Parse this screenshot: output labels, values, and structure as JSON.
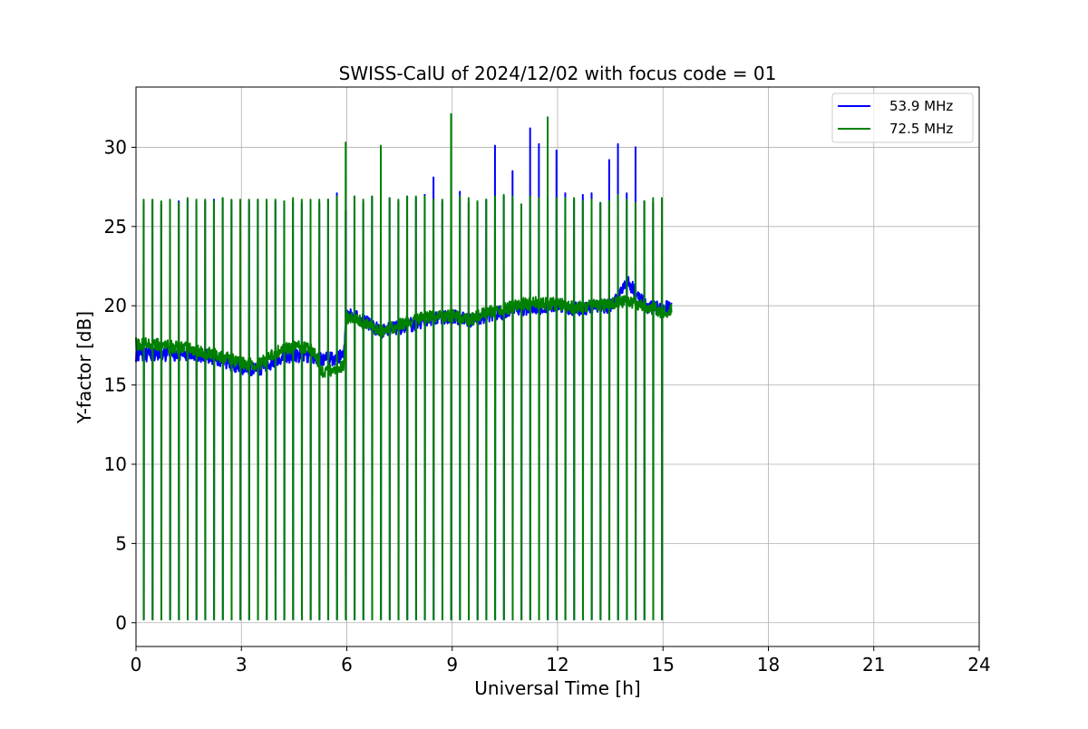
{
  "chart_data": {
    "type": "line",
    "title": "SWISS-CalU of 2024/12/02 with focus code = 01",
    "xlabel": "Universal Time [h]",
    "ylabel": "Y-factor [dB]",
    "xlim": [
      0,
      24
    ],
    "ylim": [
      -1.5,
      33.8
    ],
    "xticks": [
      0,
      3,
      6,
      9,
      12,
      15,
      18,
      21,
      24
    ],
    "xtick_labels": [
      "0",
      "3",
      "6",
      "9",
      "12",
      "15",
      "18",
      "21",
      "24"
    ],
    "yticks": [
      0,
      5,
      10,
      15,
      20,
      25,
      30
    ],
    "ytick_labels": [
      "0",
      "5",
      "10",
      "15",
      "20",
      "25",
      "30"
    ],
    "grid": true,
    "legend_position": "top-right",
    "calibration_pulses": {
      "description_period_h": 0.25,
      "low_value_db": 0.2,
      "pulse_times_h": [
        0.22,
        0.47,
        0.72,
        0.97,
        1.22,
        1.47,
        1.72,
        1.97,
        2.22,
        2.47,
        2.72,
        2.97,
        3.22,
        3.47,
        3.72,
        3.97,
        4.22,
        4.47,
        4.72,
        4.97,
        5.22,
        5.47,
        5.72,
        5.97,
        6.22,
        6.47,
        6.72,
        6.97,
        7.22,
        7.47,
        7.72,
        7.97,
        8.22,
        8.47,
        8.72,
        8.97,
        9.22,
        9.47,
        9.72,
        9.97,
        10.22,
        10.47,
        10.72,
        10.97,
        11.22,
        11.47,
        11.72,
        11.97,
        12.22,
        12.47,
        12.72,
        12.97,
        13.22,
        13.47,
        13.72,
        13.97,
        14.22,
        14.47,
        14.72,
        14.97
      ]
    },
    "series": [
      {
        "name": "53.9 MHz",
        "color": "#0000ff",
        "baseline": {
          "x": [
            0.0,
            0.5,
            1.0,
            1.5,
            2.0,
            2.5,
            3.0,
            3.5,
            4.0,
            4.5,
            5.0,
            5.5,
            5.9,
            6.0,
            6.5,
            7.0,
            7.5,
            8.0,
            8.5,
            9.0,
            9.5,
            10.0,
            10.5,
            11.0,
            11.5,
            12.0,
            12.5,
            13.0,
            13.5,
            14.0,
            14.5,
            15.0,
            15.25
          ],
          "y": [
            16.9,
            16.9,
            16.9,
            17.0,
            16.8,
            16.5,
            16.1,
            16.0,
            16.6,
            16.9,
            16.8,
            16.6,
            16.9,
            19.5,
            19.0,
            18.4,
            18.6,
            18.9,
            19.3,
            19.3,
            19.1,
            19.4,
            19.6,
            19.8,
            19.9,
            20.0,
            19.8,
            19.9,
            20.0,
            21.5,
            20.0,
            19.8,
            19.9
          ]
        },
        "pulse_peaks": [
          26.5,
          26.6,
          26.4,
          26.5,
          26.6,
          26.7,
          26.5,
          26.6,
          26.7,
          26.8,
          26.6,
          26.5,
          26.6,
          26.7,
          26.5,
          26.6,
          26.4,
          26.6,
          26.5,
          22.0,
          26.5,
          26.7,
          27.1,
          26.0,
          26.9,
          26.5,
          26.9,
          26.7,
          26.8,
          26.6,
          26.9,
          26.8,
          27.0,
          28.1,
          26.6,
          26.8,
          27.2,
          26.5,
          26.5,
          26.7,
          30.1,
          26.9,
          28.5,
          26.4,
          31.2,
          30.2,
          26.8,
          29.8,
          27.1,
          26.7,
          27.0,
          27.1,
          26.5,
          29.2,
          30.2,
          27.1,
          30.0,
          26.6,
          26.5,
          25.7
        ]
      },
      {
        "name": "72.5 MHz",
        "color": "#008000",
        "baseline": {
          "x": [
            0.0,
            0.5,
            1.0,
            1.5,
            2.0,
            2.5,
            3.0,
            3.5,
            4.0,
            4.5,
            5.0,
            5.3,
            5.5,
            5.9,
            6.0,
            6.5,
            7.0,
            7.5,
            8.0,
            8.5,
            9.0,
            9.5,
            10.0,
            10.5,
            11.0,
            11.5,
            12.0,
            12.5,
            13.0,
            13.5,
            14.0,
            14.5,
            15.0,
            15.25
          ],
          "y": [
            17.6,
            17.6,
            17.4,
            17.3,
            17.0,
            16.8,
            16.4,
            16.3,
            17.1,
            17.4,
            17.3,
            15.9,
            15.9,
            16.2,
            19.3,
            18.9,
            18.4,
            18.8,
            19.2,
            19.3,
            19.4,
            19.1,
            19.6,
            19.8,
            20.1,
            20.2,
            20.1,
            19.9,
            20.0,
            20.1,
            20.3,
            20.0,
            19.6,
            19.7
          ]
        },
        "pulse_peaks": [
          26.7,
          26.7,
          26.6,
          26.7,
          26.5,
          26.8,
          26.7,
          26.7,
          26.6,
          26.8,
          26.7,
          26.7,
          26.7,
          26.7,
          26.7,
          26.7,
          26.6,
          26.8,
          26.7,
          26.7,
          26.7,
          26.7,
          26.9,
          30.3,
          26.9,
          26.7,
          26.9,
          30.1,
          26.8,
          26.7,
          26.9,
          26.9,
          26.9,
          26.7,
          26.7,
          32.1,
          26.9,
          26.8,
          26.6,
          26.7,
          26.9,
          27.0,
          26.9,
          26.4,
          26.9,
          26.8,
          31.9,
          26.8,
          26.8,
          26.8,
          26.6,
          26.7,
          26.5,
          26.6,
          27.0,
          26.7,
          26.5,
          26.6,
          26.8,
          26.8
        ]
      }
    ]
  }
}
